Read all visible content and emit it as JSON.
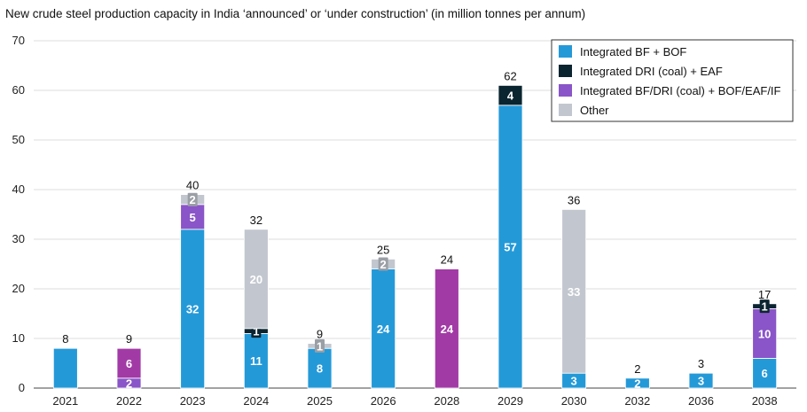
{
  "chart_data": {
    "type": "bar",
    "stacked": true,
    "title": "New crude steel production capacity in India ‘announced’ or ‘under construction’ (in million tonnes per annum)",
    "xlabel": "",
    "ylabel": "",
    "ylim": [
      0,
      70
    ],
    "yticks": [
      0,
      10,
      20,
      30,
      40,
      50,
      60,
      70
    ],
    "grid": true,
    "legend_position": "top-right",
    "categories": [
      "2021",
      "2022",
      "2023",
      "2024",
      "2025",
      "2026",
      "2028",
      "2029",
      "2030",
      "2032",
      "2036",
      "2038"
    ],
    "totals": [
      "8",
      "9",
      "40",
      "32",
      "9",
      "25",
      "24",
      "62",
      "36",
      "2",
      "3",
      "17"
    ],
    "series": [
      {
        "name": "Integrated BF + BOF",
        "color": "#2499d8",
        "values": [
          8,
          0,
          32,
          11,
          8,
          24,
          0,
          57,
          3,
          2,
          3,
          6
        ],
        "labels": [
          "",
          "",
          "32",
          "11",
          "8",
          "24",
          "",
          "57",
          "3",
          "2",
          "3",
          "6"
        ]
      },
      {
        "name": "Integrated DRI (coal) + EAF",
        "color": "#0b2530",
        "values": [
          0,
          0,
          0,
          1,
          0,
          0,
          0,
          4,
          0,
          0,
          0,
          1
        ],
        "labels": [
          "",
          "",
          "",
          "1",
          "",
          "",
          "",
          "4",
          "",
          "",
          "",
          "1"
        ]
      },
      {
        "name": "Integrated BF/DRI (coal) + BOF/EAF/IF",
        "color": "#8a55c8",
        "values": [
          0,
          2,
          5,
          0,
          0,
          0,
          0,
          0,
          0,
          0,
          0,
          10
        ],
        "labels": [
          "",
          "2",
          "5",
          "",
          "",
          "",
          "",
          "",
          "",
          "",
          "",
          "10"
        ]
      },
      {
        "name": "Other",
        "color": "#c2c7cf",
        "values": [
          0,
          0,
          2,
          20,
          1,
          2,
          0,
          0,
          33,
          0,
          0,
          0
        ],
        "labels": [
          "",
          "",
          "2",
          "20",
          "1",
          "2",
          "",
          "",
          "33",
          "",
          "",
          ""
        ]
      },
      {
        "color": "#a23aa6",
        "values": [
          0,
          6,
          0,
          0,
          0,
          0,
          24,
          0,
          0,
          0,
          0,
          0
        ],
        "labels": [
          "",
          "6",
          "",
          "",
          "",
          "",
          "24",
          "",
          "",
          "",
          "",
          ""
        ]
      }
    ]
  }
}
